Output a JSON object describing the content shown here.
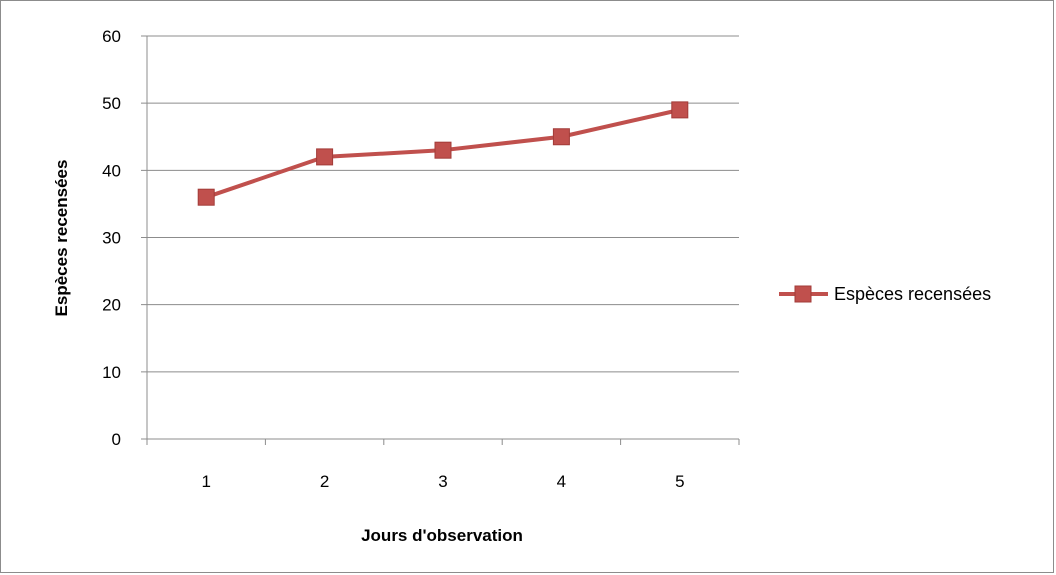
{
  "chart_data": {
    "type": "line",
    "title": "",
    "xlabel": "Jours d'observation",
    "ylabel": "Espèces recensées",
    "categories": [
      "1",
      "2",
      "3",
      "4",
      "5"
    ],
    "series": [
      {
        "name": "Espèces recensées",
        "values": [
          36,
          42,
          43,
          45,
          49
        ],
        "color": "#c0504d",
        "marker": "square"
      }
    ],
    "ylim": [
      0,
      60
    ],
    "yticks": [
      "0",
      "10",
      "20",
      "30",
      "40",
      "50",
      "60"
    ],
    "grid": true,
    "legend": "right"
  }
}
